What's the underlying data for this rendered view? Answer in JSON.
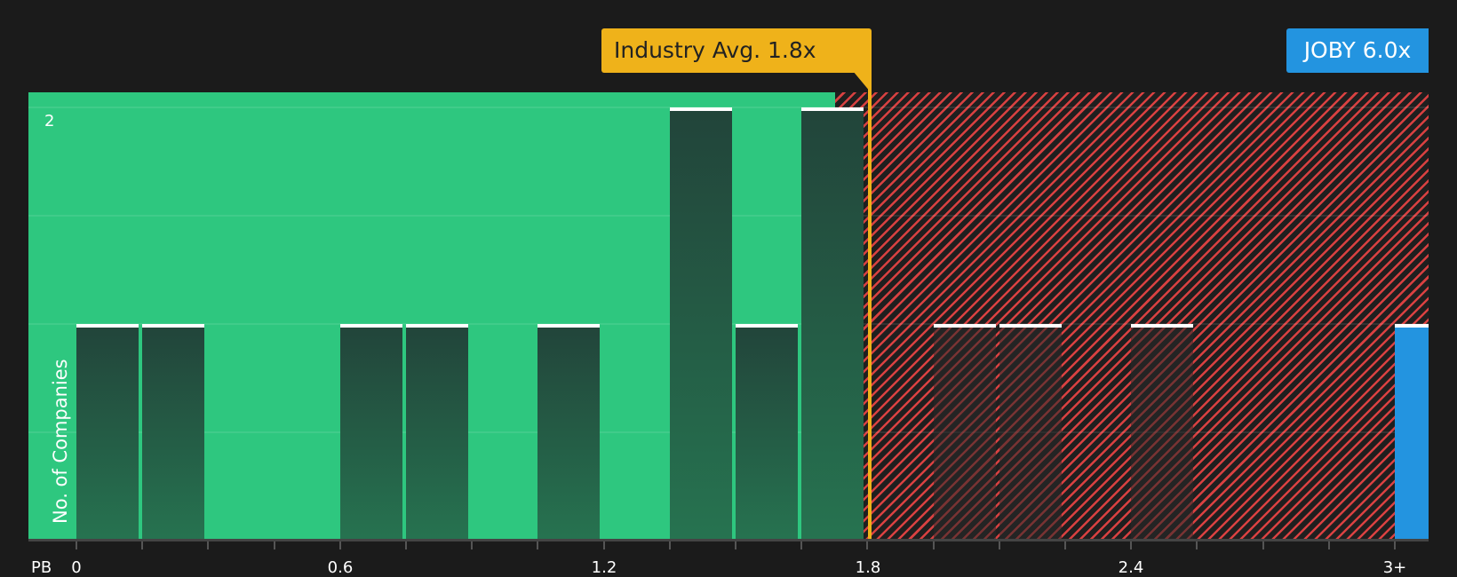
{
  "chart_data": {
    "type": "bar",
    "title": "",
    "xlabel": "PB",
    "ylabel": "No. of Companies",
    "x_tick_labels": [
      "0",
      "0.6",
      "1.2",
      "1.8",
      "2.4",
      "3+"
    ],
    "y_tick_labels": [
      "2"
    ],
    "ylim": [
      0,
      2
    ],
    "bin_width": 0.15,
    "categories": [
      "0-0.15",
      "0.15-0.3",
      "0.3-0.45",
      "0.45-0.6",
      "0.6-0.75",
      "0.75-0.9",
      "0.9-1.05",
      "1.05-1.2",
      "1.2-1.35",
      "1.35-1.5",
      "1.5-1.65",
      "1.65-1.8",
      "1.8-1.95",
      "1.95-2.1",
      "2.1-2.25",
      "2.25-2.4",
      "2.4-2.55",
      "2.55-2.7",
      "2.7-2.85",
      "2.85-3.0",
      "3+"
    ],
    "values": [
      1,
      1,
      0,
      0,
      1,
      1,
      0,
      1,
      0,
      2,
      1,
      2,
      0,
      1,
      1,
      0,
      1,
      0,
      0,
      0,
      1
    ],
    "annotations": [
      {
        "label": "Industry Avg. 1.8x",
        "x": 1.8,
        "color": "#efb21a"
      },
      {
        "label": "JOBY 6.0x",
        "x": "3+",
        "color": "#2394e0"
      }
    ],
    "grid": true
  },
  "labels": {
    "avg": "Industry Avg. 1.8x",
    "company": "JOBY 6.0x",
    "pb": "PB",
    "ylabel": "No. of Companies",
    "ytick": "2",
    "xticks": [
      "0",
      "0.6",
      "1.2",
      "1.8",
      "2.4",
      "3+"
    ]
  },
  "colors": {
    "under": "#2ec77f",
    "over": "#d94141",
    "avg": "#efb21a",
    "company": "#2394e0",
    "background": "#1b1b1b"
  }
}
